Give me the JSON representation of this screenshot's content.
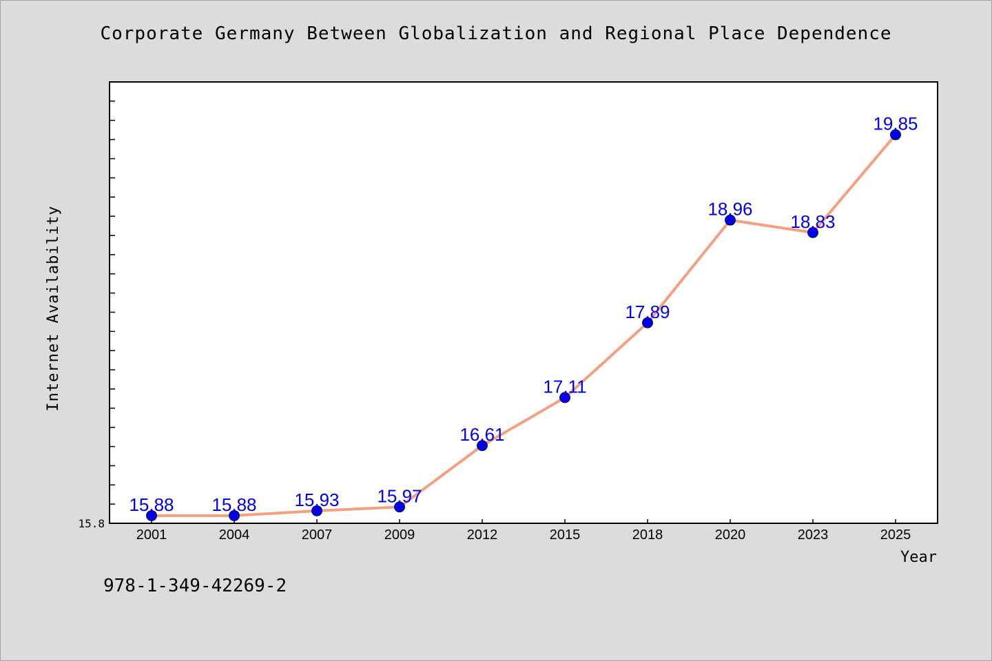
{
  "chart_data": {
    "type": "line",
    "title": "Corporate Germany Between Globalization and Regional Place Dependence",
    "xlabel": "Year",
    "ylabel": "Internet Availability",
    "categories": [
      "2001",
      "2004",
      "2007",
      "2009",
      "2012",
      "2015",
      "2018",
      "2020",
      "2023",
      "2025"
    ],
    "series": [
      {
        "values": [
          15.88,
          15.88,
          15.93,
          15.97,
          16.61,
          17.11,
          17.89,
          18.96,
          18.83,
          19.85
        ]
      }
    ],
    "labels": [
      "15.88",
      "15.88",
      "15.93",
      "15.97",
      "16.61",
      "17.11",
      "17.89",
      "18.96",
      "18.83",
      "19.85"
    ],
    "ylim": [
      15.8,
      20.4
    ],
    "y_tick_label": "15.8",
    "grid": false,
    "line_color": "#f4a07f",
    "marker_color": "#0000ee",
    "label_color": "#0000ee"
  },
  "isbn": "978-1-349-42269-2"
}
